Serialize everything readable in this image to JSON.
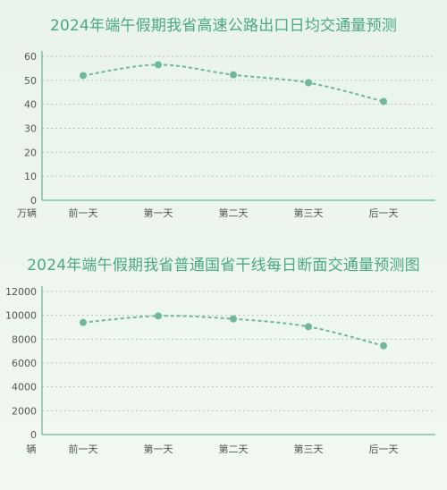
{
  "colors": {
    "background": "#eef6ef",
    "title": "#4aa882",
    "series": "#6fb89a",
    "grid": "#b8c2bd",
    "axis": "#6fb89a"
  },
  "chart_data": [
    {
      "type": "line",
      "title": "2024年端午假期我省高速公路出口日均交通量预测",
      "ylabel": "万辆",
      "categories": [
        "前一天",
        "第一天",
        "第二天",
        "第三天",
        "后一天"
      ],
      "series": [
        {
          "values": [
            52,
            56.5,
            52.3,
            49,
            41.2
          ]
        }
      ],
      "yticks": [
        0,
        10,
        20,
        30,
        40,
        50,
        60
      ],
      "ylim": [
        0,
        60
      ],
      "grid": true,
      "line_style": "dashed"
    },
    {
      "type": "line",
      "title": "2024年端午假期我省普通国省干线每日断面交通量预测图",
      "ylabel": "辆",
      "categories": [
        "前一天",
        "第一天",
        "第二天",
        "第三天",
        "后一天"
      ],
      "series": [
        {
          "values": [
            9400,
            9950,
            9700,
            9050,
            7450
          ]
        }
      ],
      "yticks": [
        0,
        2000,
        4000,
        6000,
        8000,
        10000,
        12000
      ],
      "ylim": [
        0,
        12000
      ],
      "grid": true,
      "line_style": "dashed"
    }
  ]
}
